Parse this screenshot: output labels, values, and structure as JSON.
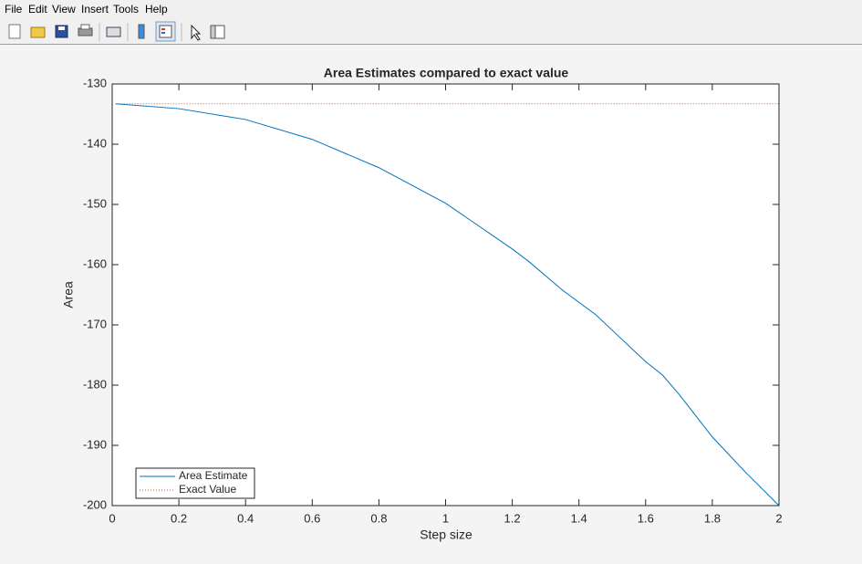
{
  "menu": [
    "File",
    "Edit",
    "View",
    "Insert",
    "Tools",
    "Help"
  ],
  "chart_data": {
    "type": "line",
    "title": "Area Estimates compared to exact value",
    "xlabel": "Step size",
    "ylabel": "Area",
    "x": [
      0.01,
      0.2,
      0.4,
      0.6,
      0.8,
      1.0,
      1.1,
      1.2,
      1.25,
      1.35,
      1.45,
      1.5,
      1.6,
      1.65,
      1.7,
      1.8,
      1.9,
      2.0
    ],
    "series": [
      {
        "name": "Area Estimate",
        "color": "#0072bd",
        "style": "solid",
        "values": [
          -133.3,
          -134.1,
          -135.9,
          -139.2,
          -143.9,
          -149.8,
          -153.6,
          -157.4,
          -159.5,
          -164.2,
          -168.3,
          -170.9,
          -176.1,
          -178.3,
          -181.5,
          -188.6,
          -194.5,
          -200
        ]
      },
      {
        "name": "Exact Value",
        "color": "#d95319",
        "style": "dotted",
        "values": [
          -133.3,
          -133.3,
          -133.3,
          -133.3,
          -133.3,
          -133.3,
          -133.3,
          -133.3,
          -133.3,
          -133.3,
          -133.3,
          -133.3,
          -133.3,
          -133.3,
          -133.3,
          -133.3,
          -133.3,
          -133.3
        ]
      }
    ],
    "xlim": [
      0,
      2
    ],
    "xticks": [
      0,
      0.2,
      0.4,
      0.6,
      0.8,
      1,
      1.2,
      1.4,
      1.6,
      1.8,
      2
    ],
    "ylim": [
      -200,
      -130
    ],
    "yticks": [
      -200,
      -190,
      -180,
      -170,
      -160,
      -150,
      -140,
      -130
    ],
    "grid": false,
    "legend": "southwest"
  }
}
